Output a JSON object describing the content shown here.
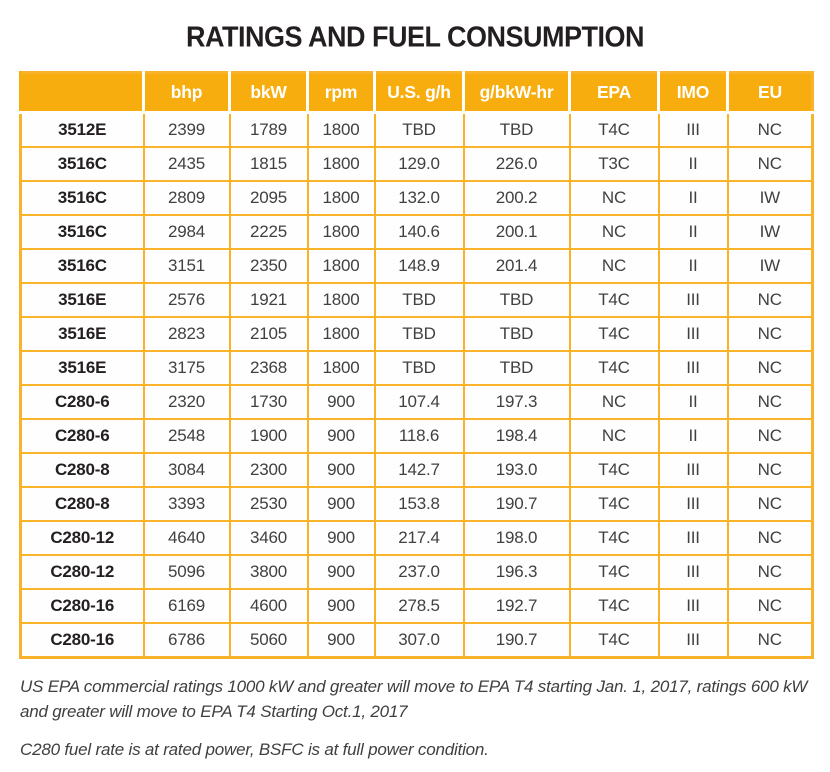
{
  "title": "RATINGS AND FUEL CONSUMPTION",
  "table": {
    "headers": [
      "",
      "bhp",
      "bkW",
      "rpm",
      "U.S. g/h",
      "g/bkW-hr",
      "EPA",
      "IMO",
      "EU"
    ],
    "rows": [
      [
        "3512E",
        "2399",
        "1789",
        "1800",
        "TBD",
        "TBD",
        "T4C",
        "III",
        "NC"
      ],
      [
        "3516C",
        "2435",
        "1815",
        "1800",
        "129.0",
        "226.0",
        "T3C",
        "II",
        "NC"
      ],
      [
        "3516C",
        "2809",
        "2095",
        "1800",
        "132.0",
        "200.2",
        "NC",
        "II",
        "IW"
      ],
      [
        "3516C",
        "2984",
        "2225",
        "1800",
        "140.6",
        "200.1",
        "NC",
        "II",
        "IW"
      ],
      [
        "3516C",
        "3151",
        "2350",
        "1800",
        "148.9",
        "201.4",
        "NC",
        "II",
        "IW"
      ],
      [
        "3516E",
        "2576",
        "1921",
        "1800",
        "TBD",
        "TBD",
        "T4C",
        "III",
        "NC"
      ],
      [
        "3516E",
        "2823",
        "2105",
        "1800",
        "TBD",
        "TBD",
        "T4C",
        "III",
        "NC"
      ],
      [
        "3516E",
        "3175",
        "2368",
        "1800",
        "TBD",
        "TBD",
        "T4C",
        "III",
        "NC"
      ],
      [
        "C280-6",
        "2320",
        "1730",
        "900",
        "107.4",
        "197.3",
        "NC",
        "II",
        "NC"
      ],
      [
        "C280-6",
        "2548",
        "1900",
        "900",
        "118.6",
        "198.4",
        "NC",
        "II",
        "NC"
      ],
      [
        "C280-8",
        "3084",
        "2300",
        "900",
        "142.7",
        "193.0",
        "T4C",
        "III",
        "NC"
      ],
      [
        "C280-8",
        "3393",
        "2530",
        "900",
        "153.8",
        "190.7",
        "T4C",
        "III",
        "NC"
      ],
      [
        "C280-12",
        "4640",
        "3460",
        "900",
        "217.4",
        "198.0",
        "T4C",
        "III",
        "NC"
      ],
      [
        "C280-12",
        "5096",
        "3800",
        "900",
        "237.0",
        "196.3",
        "T4C",
        "III",
        "NC"
      ],
      [
        "C280-16",
        "6169",
        "4600",
        "900",
        "278.5",
        "192.7",
        "T4C",
        "III",
        "NC"
      ],
      [
        "C280-16",
        "6786",
        "5060",
        "900",
        "307.0",
        "190.7",
        "T4C",
        "III",
        "NC"
      ]
    ]
  },
  "footnotes": [
    "US EPA commercial ratings 1000 kW and greater will move to EPA T4 starting Jan. 1, 2017, ratings 600 kW and greater will move to EPA T4 Starting Oct.1, 2017",
    "C280 fuel rate is at rated power, BSFC is at full power condition."
  ],
  "colors": {
    "header_bg": "#f8ad0e",
    "header_text": "#ffffff",
    "border_color": "#f9b32b",
    "title_color": "#231f20",
    "model_color": "#231f20",
    "value_color": "#414042",
    "footnote_color": "#3f3f41"
  }
}
